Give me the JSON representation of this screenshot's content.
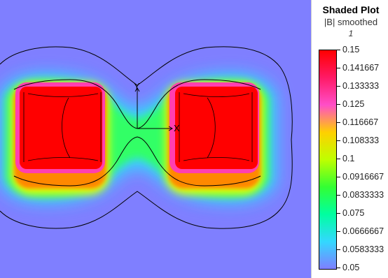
{
  "legend": {
    "title": "Shaded Plot",
    "subtitle": "|B| smoothed",
    "number": "1",
    "ticks": [
      "0.15",
      "0.141667",
      "0.133333",
      "0.125",
      "0.116667",
      "0.108333",
      "0.1",
      "0.0916667",
      "0.0833333",
      "0.075",
      "0.0666667",
      "0.0583333",
      "0.05"
    ]
  },
  "axes": {
    "x_label": "X",
    "y_label": "Y"
  },
  "colors": {
    "background_field": "#7f7fff",
    "max_field": "#ff0000",
    "contour": "#000000"
  }
}
